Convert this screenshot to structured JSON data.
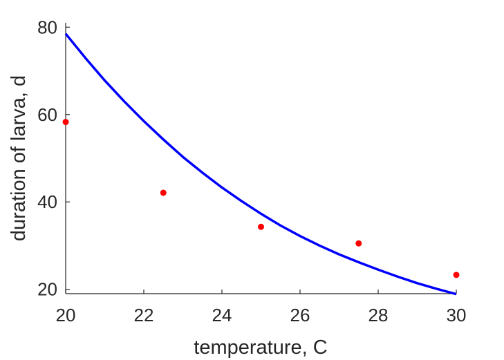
{
  "chart_data": {
    "type": "line",
    "title": "",
    "xlabel": "temperature, C",
    "ylabel": "duration of larva, d",
    "xlim": [
      20,
      30
    ],
    "ylim": [
      19,
      81
    ],
    "x_ticks": [
      20,
      22,
      24,
      26,
      28,
      30
    ],
    "y_ticks": [
      20,
      40,
      60,
      80
    ],
    "grid": false,
    "series": [
      {
        "kind": "line",
        "color": "#0000ff",
        "x": [
          20,
          20.5,
          21,
          21.5,
          22,
          22.5,
          23,
          23.5,
          24,
          24.5,
          25,
          25.5,
          26,
          26.5,
          27,
          27.5,
          28,
          28.5,
          29,
          29.5,
          30
        ],
        "y": [
          78.5,
          73.0,
          67.8,
          63.0,
          58.5,
          54.3,
          50.3,
          46.7,
          43.3,
          40.2,
          37.3,
          34.6,
          32.2,
          30.0,
          28.0,
          26.2,
          24.5,
          22.9,
          21.4,
          20.1,
          18.9
        ]
      },
      {
        "kind": "scatter",
        "color": "#ff0000",
        "x": [
          20,
          22.5,
          25,
          27.5,
          30
        ],
        "y": [
          58.3,
          42.1,
          34.3,
          30.5,
          23.3
        ]
      }
    ]
  }
}
